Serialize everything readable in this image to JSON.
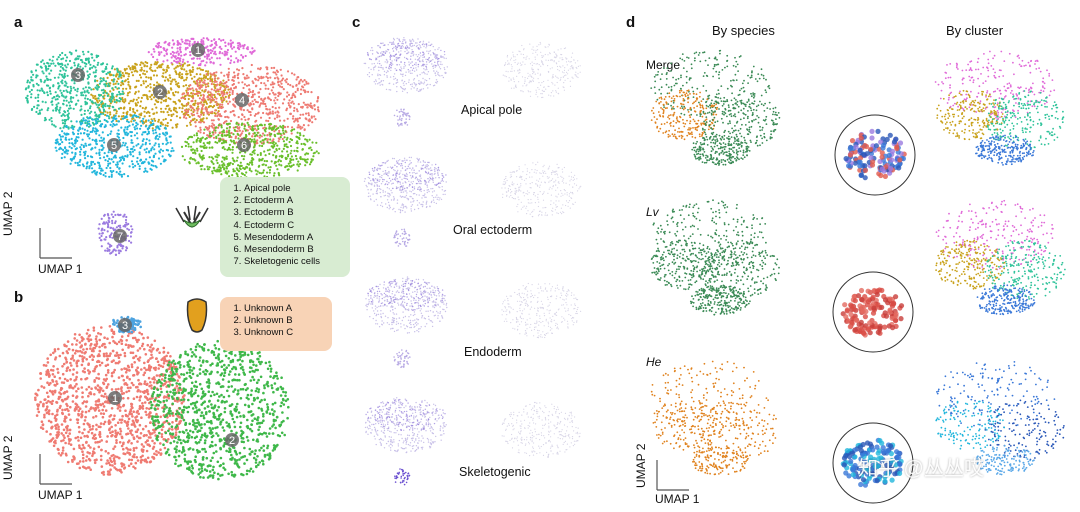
{
  "panels": {
    "a": {
      "letter": "a",
      "clusters": [
        {
          "num": "1",
          "color": "#e06ad8"
        },
        {
          "num": "2",
          "color": "#c9a21c"
        },
        {
          "num": "3",
          "color": "#2ec39a"
        },
        {
          "num": "4",
          "color": "#ee7a72"
        },
        {
          "num": "5",
          "color": "#22b6dc"
        },
        {
          "num": "6",
          "color": "#69bf2a"
        },
        {
          "num": "7",
          "color": "#9b7be0"
        }
      ],
      "legend": [
        "Apical pole",
        "Ectoderm A",
        "Ectoderm B",
        "Ectoderm C",
        "Mesendoderm A",
        "Mesendoderm B",
        "Skeletogenic cells"
      ],
      "legend_bg": "#d8ecd2",
      "xlabel": "UMAP 1",
      "ylabel": "UMAP 2"
    },
    "b": {
      "letter": "b",
      "clusters": [
        {
          "num": "1",
          "color": "#ef7b72"
        },
        {
          "num": "2",
          "color": "#3fb84a"
        },
        {
          "num": "3",
          "color": "#4da3e0"
        }
      ],
      "legend": [
        "Unknown A",
        "Unknown B",
        "Unknown C"
      ],
      "legend_bg": "#f8d3b6",
      "xlabel": "UMAP 1",
      "ylabel": "UMAP 2"
    },
    "c": {
      "letter": "c",
      "genes": [
        "Apical pole",
        "Oral ectoderm",
        "Endoderm",
        "Skeletogenic"
      ],
      "color": "#8a72d8"
    },
    "d": {
      "letter": "d",
      "col_titles": [
        "By species",
        "By cluster"
      ],
      "rows": [
        "Merge",
        "Lv",
        "He"
      ],
      "species_colors": {
        "Lv": "#3a8a55",
        "He": "#e0821e"
      },
      "xlabel": "UMAP 1",
      "ylabel": "UMAP 2"
    }
  },
  "watermark": "知乎 @丛丛哎"
}
